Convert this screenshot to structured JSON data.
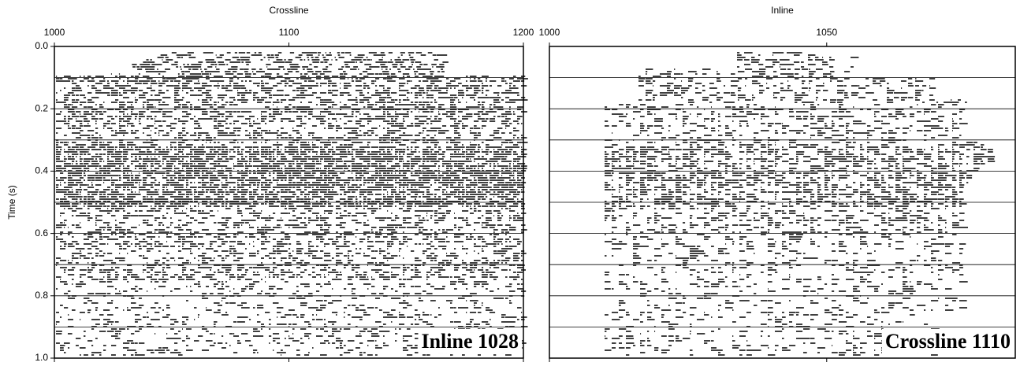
{
  "chart_data": [
    {
      "type": "seismic",
      "xlabel": "Crossline",
      "ylabel": "Time (s)",
      "annotation": "Inline 1028",
      "xlim": [
        1000,
        1200
      ],
      "xticks": [
        1000,
        1100,
        1200
      ],
      "ylim": [
        0,
        1
      ],
      "yticks": [
        {
          "value": 0,
          "label": "0.0"
        },
        {
          "value": 0.2,
          "label": "0.2"
        },
        {
          "value": 0.4,
          "label": "0.4"
        },
        {
          "value": 0.6,
          "label": "0.6"
        },
        {
          "value": 0.8,
          "label": "0.8"
        },
        {
          "value": 1,
          "label": "1.0"
        }
      ],
      "ygrid": [
        0.1,
        0.2,
        0.3,
        0.4,
        0.5,
        0.6,
        0.7,
        0.8,
        0.9
      ]
    },
    {
      "type": "seismic",
      "xlabel": "Inline",
      "annotation": "Crossline 1110",
      "xlim": [
        1000,
        1084
      ],
      "xticks": [
        1000,
        1050
      ],
      "ylim": [
        0,
        1
      ],
      "ygrid": [
        0.1,
        0.2,
        0.3,
        0.4,
        0.5,
        0.6,
        0.7,
        0.8,
        0.9
      ]
    }
  ]
}
